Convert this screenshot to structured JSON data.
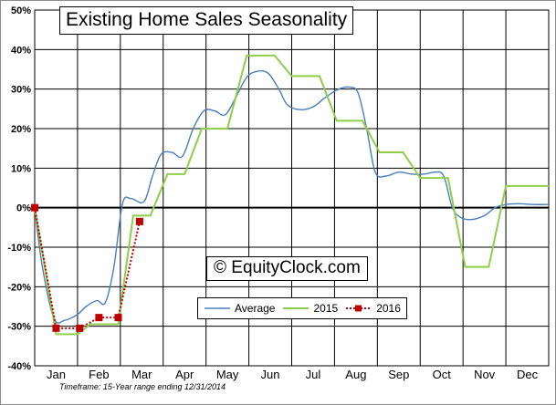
{
  "chart_data": {
    "type": "line",
    "title": "Existing Home Sales Seasonality",
    "watermark": "© EquityClock.com",
    "footnote": "Timeframe: 15-Year range ending 12/31/2014",
    "ylim": [
      -40,
      50
    ],
    "y_ticks": [
      -40,
      -30,
      -20,
      -10,
      0,
      10,
      20,
      30,
      40,
      50
    ],
    "y_tick_labels": [
      "-40%",
      "-30%",
      "-20%",
      "-10%",
      "0%",
      "10%",
      "20%",
      "30%",
      "40%",
      "50%"
    ],
    "months": [
      "Jan",
      "Feb",
      "Mar",
      "Apr",
      "May",
      "Jun",
      "Jul",
      "Aug",
      "Sep",
      "Oct",
      "Nov",
      "Dec"
    ],
    "grid": true,
    "legend_position": "bottom-center",
    "x_unit": "month (0 = start of Jan, 12 = end of Dec)",
    "series": [
      {
        "name": "Average",
        "color": "#4a7ebb",
        "style": "smooth",
        "points": [
          [
            0.0,
            0.0
          ],
          [
            0.18,
            -15.0
          ],
          [
            0.45,
            -28.0
          ],
          [
            0.7,
            -28.5
          ],
          [
            1.0,
            -27.0
          ],
          [
            1.2,
            -25.0
          ],
          [
            1.45,
            -23.5
          ],
          [
            1.65,
            -24.0
          ],
          [
            1.85,
            -15.0
          ],
          [
            2.05,
            1.0
          ],
          [
            2.25,
            2.3
          ],
          [
            2.55,
            1.5
          ],
          [
            2.75,
            8.0
          ],
          [
            2.95,
            13.5
          ],
          [
            3.2,
            14.0
          ],
          [
            3.45,
            13.0
          ],
          [
            3.7,
            20.0
          ],
          [
            3.95,
            24.5
          ],
          [
            4.2,
            24.5
          ],
          [
            4.45,
            23.5
          ],
          [
            4.7,
            28.0
          ],
          [
            4.95,
            33.0
          ],
          [
            5.2,
            34.5
          ],
          [
            5.45,
            34.0
          ],
          [
            5.7,
            30.0
          ],
          [
            5.9,
            26.0
          ],
          [
            6.2,
            24.8
          ],
          [
            6.5,
            25.5
          ],
          [
            6.8,
            28.0
          ],
          [
            7.1,
            30.0
          ],
          [
            7.35,
            30.5
          ],
          [
            7.55,
            29.0
          ],
          [
            7.75,
            20.0
          ],
          [
            7.95,
            9.0
          ],
          [
            8.2,
            8.0
          ],
          [
            8.5,
            9.0
          ],
          [
            8.8,
            8.5
          ],
          [
            9.1,
            8.5
          ],
          [
            9.35,
            9.0
          ],
          [
            9.55,
            8.0
          ],
          [
            9.75,
            0.0
          ],
          [
            9.95,
            -2.5
          ],
          [
            10.2,
            -3.0
          ],
          [
            10.5,
            -2.0
          ],
          [
            10.75,
            0.0
          ],
          [
            11.0,
            0.8
          ],
          [
            11.3,
            1.0
          ],
          [
            11.65,
            0.8
          ],
          [
            12.0,
            0.8
          ]
        ]
      },
      {
        "name": "2015",
        "color": "#8fce4a",
        "style": "linear",
        "points": [
          [
            0.0,
            0.0
          ],
          [
            0.5,
            -32.0
          ],
          [
            1.0,
            -32.0
          ],
          [
            1.3,
            -29.5
          ],
          [
            1.95,
            -29.5
          ],
          [
            2.3,
            -2.0
          ],
          [
            2.7,
            -2.0
          ],
          [
            3.1,
            8.5
          ],
          [
            3.5,
            8.5
          ],
          [
            3.9,
            20.0
          ],
          [
            4.5,
            20.0
          ],
          [
            4.95,
            38.5
          ],
          [
            5.6,
            38.5
          ],
          [
            6.0,
            33.3
          ],
          [
            6.65,
            33.3
          ],
          [
            7.05,
            22.0
          ],
          [
            7.65,
            22.0
          ],
          [
            8.05,
            14.0
          ],
          [
            8.6,
            14.0
          ],
          [
            9.0,
            7.5
          ],
          [
            9.65,
            7.5
          ],
          [
            10.05,
            -15.0
          ],
          [
            10.6,
            -15.0
          ],
          [
            11.0,
            5.5
          ],
          [
            12.0,
            5.5
          ]
        ]
      },
      {
        "name": "2016",
        "color": "#c00000",
        "style": "dotted-markers",
        "points": [
          [
            0.0,
            0.0
          ],
          [
            0.5,
            -30.5
          ],
          [
            1.05,
            -30.5
          ],
          [
            1.5,
            -27.8
          ],
          [
            1.95,
            -27.8
          ],
          [
            2.45,
            -3.5
          ]
        ]
      }
    ]
  }
}
